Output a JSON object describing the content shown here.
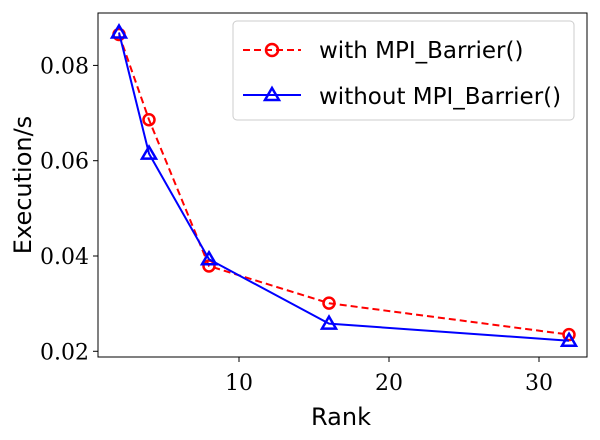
{
  "chart_data": {
    "type": "line",
    "title": "",
    "xlabel": "Rank",
    "ylabel": "Execution/s",
    "xlim": [
      0.6,
      33.2
    ],
    "ylim": [
      0.0188,
      0.091
    ],
    "xticks": [
      10,
      20,
      30
    ],
    "yticks": [
      0.02,
      0.04,
      0.06,
      0.08
    ],
    "xtick_labels": [
      "10",
      "20",
      "30"
    ],
    "ytick_labels": [
      "0.02",
      "0.04",
      "0.06",
      "0.08"
    ],
    "grid": false,
    "legend_position": "top-right",
    "series": [
      {
        "name": "with MPI_Barrier()",
        "color": "#ff0000",
        "line_style": "dashed",
        "marker": "circle",
        "x": [
          2,
          4,
          8,
          16,
          32
        ],
        "y": [
          0.0865,
          0.0686,
          0.0379,
          0.0301,
          0.0235
        ]
      },
      {
        "name": "without MPI_Barrier()",
        "color": "#0000ff",
        "line_style": "solid",
        "marker": "triangle",
        "x": [
          2,
          4,
          8,
          16,
          32
        ],
        "y": [
          0.0869,
          0.0615,
          0.0393,
          0.0258,
          0.0222
        ]
      }
    ]
  }
}
